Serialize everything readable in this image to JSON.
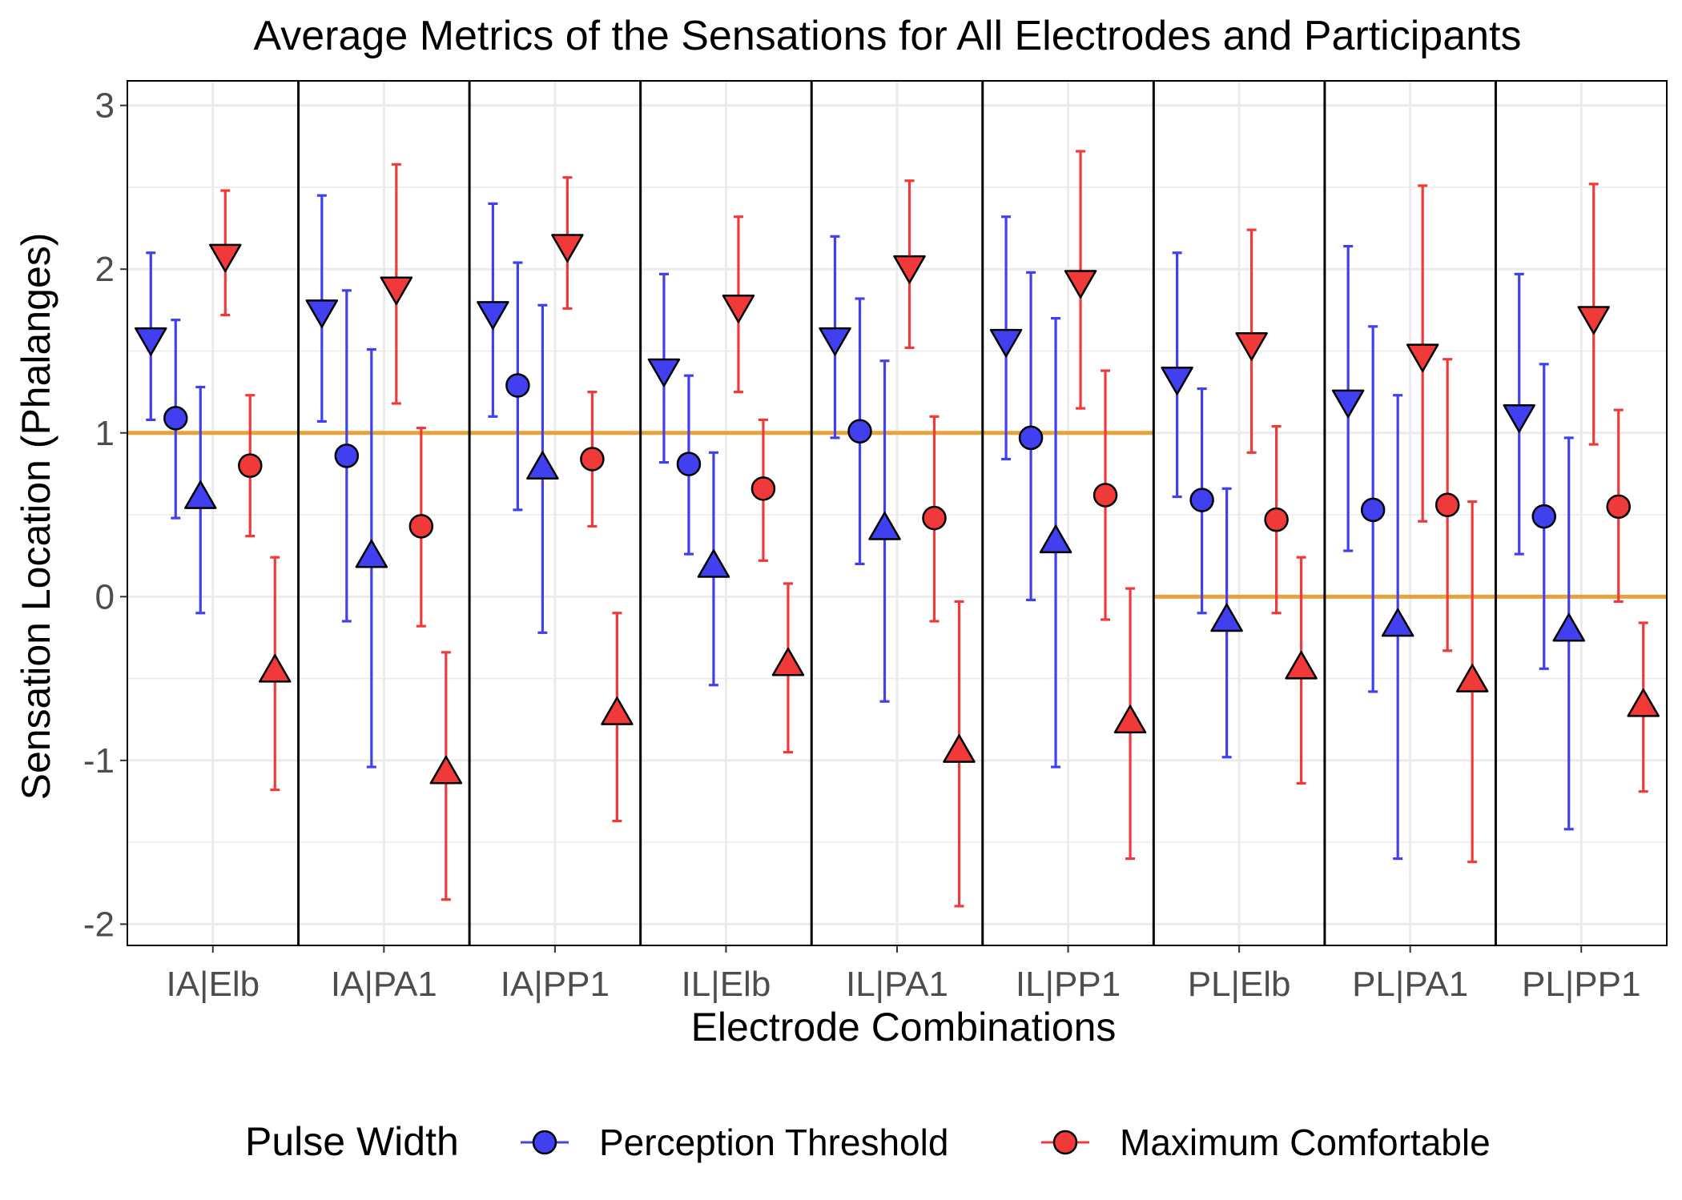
{
  "chart_data": {
    "type": "scatter",
    "title": "Average Metrics of the Sensations for All Electrodes and Participants",
    "xlabel": "Electrode Combinations",
    "ylabel": "Sensation Location (Phalanges)",
    "ylim": [
      -2.13,
      3.15
    ],
    "yticks": [
      3,
      2,
      1,
      0,
      -1,
      -2
    ],
    "categories": [
      "IA|Elb",
      "IA|PA1",
      "IA|PP1",
      "IL|Elb",
      "IL|PA1",
      "IL|PP1",
      "PL|Elb",
      "PL|PA1",
      "PL|PP1"
    ],
    "legend": {
      "title": "Pulse Width",
      "position": "bottom",
      "entries": [
        {
          "label": "Perception Threshold",
          "color": "#4040f0"
        },
        {
          "label": "Maximum Comfortable",
          "color": "#f03a3a"
        }
      ]
    },
    "reference_lines": [
      1,
      1,
      1,
      1,
      1,
      1,
      0,
      0,
      0
    ],
    "reference_line_color": "#e8a23c",
    "series": [
      {
        "name": "Perception Threshold",
        "color": "#4040f0",
        "points": [
          {
            "x": "IA|Elb",
            "marker": "triangle-down",
            "y": 1.58,
            "lo": 1.08,
            "hi": 2.1
          },
          {
            "x": "IA|Elb",
            "marker": "circle",
            "y": 1.09,
            "lo": 0.48,
            "hi": 1.69
          },
          {
            "x": "IA|Elb",
            "marker": "triangle-up",
            "y": 0.6,
            "lo": -0.1,
            "hi": 1.28
          },
          {
            "x": "IA|PA1",
            "marker": "triangle-down",
            "y": 1.75,
            "lo": 1.07,
            "hi": 2.45
          },
          {
            "x": "IA|PA1",
            "marker": "circle",
            "y": 0.86,
            "lo": -0.15,
            "hi": 1.87
          },
          {
            "x": "IA|PA1",
            "marker": "triangle-up",
            "y": 0.24,
            "lo": -1.04,
            "hi": 1.51
          },
          {
            "x": "IA|PP1",
            "marker": "triangle-down",
            "y": 1.74,
            "lo": 1.1,
            "hi": 2.4
          },
          {
            "x": "IA|PP1",
            "marker": "circle",
            "y": 1.29,
            "lo": 0.53,
            "hi": 2.04
          },
          {
            "x": "IA|PP1",
            "marker": "triangle-up",
            "y": 0.78,
            "lo": -0.22,
            "hi": 1.78
          },
          {
            "x": "IL|Elb",
            "marker": "triangle-down",
            "y": 1.39,
            "lo": 0.82,
            "hi": 1.97
          },
          {
            "x": "IL|Elb",
            "marker": "circle",
            "y": 0.81,
            "lo": 0.26,
            "hi": 1.35
          },
          {
            "x": "IL|Elb",
            "marker": "triangle-up",
            "y": 0.18,
            "lo": -0.54,
            "hi": 0.88
          },
          {
            "x": "IL|PA1",
            "marker": "triangle-down",
            "y": 1.58,
            "lo": 0.97,
            "hi": 2.2
          },
          {
            "x": "IL|PA1",
            "marker": "circle",
            "y": 1.01,
            "lo": 0.2,
            "hi": 1.82
          },
          {
            "x": "IL|PA1",
            "marker": "triangle-up",
            "y": 0.41,
            "lo": -0.64,
            "hi": 1.44
          },
          {
            "x": "IL|PP1",
            "marker": "triangle-down",
            "y": 1.57,
            "lo": 0.84,
            "hi": 2.32
          },
          {
            "x": "IL|PP1",
            "marker": "circle",
            "y": 0.97,
            "lo": -0.02,
            "hi": 1.98
          },
          {
            "x": "IL|PP1",
            "marker": "triangle-up",
            "y": 0.33,
            "lo": -1.04,
            "hi": 1.7
          },
          {
            "x": "PL|Elb",
            "marker": "triangle-down",
            "y": 1.34,
            "lo": 0.61,
            "hi": 2.1
          },
          {
            "x": "PL|Elb",
            "marker": "circle",
            "y": 0.59,
            "lo": -0.1,
            "hi": 1.27
          },
          {
            "x": "PL|Elb",
            "marker": "triangle-up",
            "y": -0.15,
            "lo": -0.98,
            "hi": 0.66
          },
          {
            "x": "PL|PA1",
            "marker": "triangle-down",
            "y": 1.2,
            "lo": 0.28,
            "hi": 2.14
          },
          {
            "x": "PL|PA1",
            "marker": "circle",
            "y": 0.53,
            "lo": -0.58,
            "hi": 1.65
          },
          {
            "x": "PL|PA1",
            "marker": "triangle-up",
            "y": -0.18,
            "lo": -1.6,
            "hi": 1.23
          },
          {
            "x": "PL|PP1",
            "marker": "triangle-down",
            "y": 1.11,
            "lo": 0.26,
            "hi": 1.97
          },
          {
            "x": "PL|PP1",
            "marker": "circle",
            "y": 0.49,
            "lo": -0.44,
            "hi": 1.42
          },
          {
            "x": "PL|PP1",
            "marker": "triangle-up",
            "y": -0.21,
            "lo": -1.42,
            "hi": 0.97
          }
        ]
      },
      {
        "name": "Maximum Comfortable",
        "color": "#f03a3a",
        "points": [
          {
            "x": "IA|Elb",
            "marker": "triangle-down",
            "y": 2.09,
            "lo": 1.72,
            "hi": 2.48
          },
          {
            "x": "IA|Elb",
            "marker": "circle",
            "y": 0.8,
            "lo": 0.37,
            "hi": 1.23
          },
          {
            "x": "IA|Elb",
            "marker": "triangle-up",
            "y": -0.46,
            "lo": -1.18,
            "hi": 0.24
          },
          {
            "x": "IA|PA1",
            "marker": "triangle-down",
            "y": 1.89,
            "lo": 1.18,
            "hi": 2.64
          },
          {
            "x": "IA|PA1",
            "marker": "circle",
            "y": 0.43,
            "lo": -0.18,
            "hi": 1.03
          },
          {
            "x": "IA|PA1",
            "marker": "triangle-up",
            "y": -1.08,
            "lo": -1.85,
            "hi": -0.34
          },
          {
            "x": "IA|PP1",
            "marker": "triangle-down",
            "y": 2.15,
            "lo": 1.76,
            "hi": 2.56
          },
          {
            "x": "IA|PP1",
            "marker": "circle",
            "y": 0.84,
            "lo": 0.43,
            "hi": 1.25
          },
          {
            "x": "IA|PP1",
            "marker": "triangle-up",
            "y": -0.72,
            "lo": -1.37,
            "hi": -0.1
          },
          {
            "x": "IL|Elb",
            "marker": "triangle-down",
            "y": 1.78,
            "lo": 1.25,
            "hi": 2.32
          },
          {
            "x": "IL|Elb",
            "marker": "circle",
            "y": 0.66,
            "lo": 0.22,
            "hi": 1.08
          },
          {
            "x": "IL|Elb",
            "marker": "triangle-up",
            "y": -0.42,
            "lo": -0.95,
            "hi": 0.08
          },
          {
            "x": "IL|PA1",
            "marker": "triangle-down",
            "y": 2.02,
            "lo": 1.52,
            "hi": 2.54
          },
          {
            "x": "IL|PA1",
            "marker": "circle",
            "y": 0.48,
            "lo": -0.15,
            "hi": 1.1
          },
          {
            "x": "IL|PA1",
            "marker": "triangle-up",
            "y": -0.95,
            "lo": -1.89,
            "hi": -0.03
          },
          {
            "x": "IL|PP1",
            "marker": "triangle-down",
            "y": 1.93,
            "lo": 1.15,
            "hi": 2.72
          },
          {
            "x": "IL|PP1",
            "marker": "circle",
            "y": 0.62,
            "lo": -0.14,
            "hi": 1.38
          },
          {
            "x": "IL|PP1",
            "marker": "triangle-up",
            "y": -0.77,
            "lo": -1.6,
            "hi": 0.05
          },
          {
            "x": "PL|Elb",
            "marker": "triangle-down",
            "y": 1.55,
            "lo": 0.88,
            "hi": 2.24
          },
          {
            "x": "PL|Elb",
            "marker": "circle",
            "y": 0.47,
            "lo": -0.1,
            "hi": 1.04
          },
          {
            "x": "PL|Elb",
            "marker": "triangle-up",
            "y": -0.44,
            "lo": -1.14,
            "hi": 0.24
          },
          {
            "x": "PL|PA1",
            "marker": "triangle-down",
            "y": 1.48,
            "lo": 0.46,
            "hi": 2.51
          },
          {
            "x": "PL|PA1",
            "marker": "circle",
            "y": 0.56,
            "lo": -0.33,
            "hi": 1.45
          },
          {
            "x": "PL|PA1",
            "marker": "triangle-up",
            "y": -0.52,
            "lo": -1.62,
            "hi": 0.58
          },
          {
            "x": "PL|PP1",
            "marker": "triangle-down",
            "y": 1.71,
            "lo": 0.93,
            "hi": 2.52
          },
          {
            "x": "PL|PP1",
            "marker": "circle",
            "y": 0.55,
            "lo": -0.03,
            "hi": 1.14
          },
          {
            "x": "PL|PP1",
            "marker": "triangle-up",
            "y": -0.67,
            "lo": -1.19,
            "hi": -0.16
          }
        ]
      }
    ]
  }
}
